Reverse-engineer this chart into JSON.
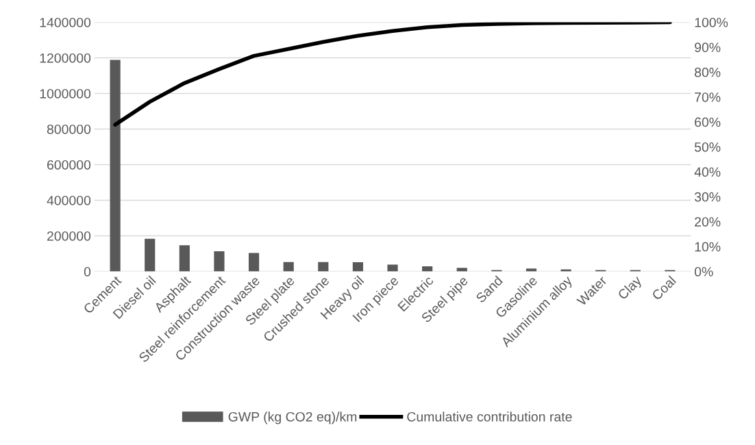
{
  "chart_data": {
    "type": "bar",
    "categories": [
      "Cement",
      "Diesel oil",
      "Asphalt",
      "Steel reinforcement",
      "Construction waste",
      "Steel plate",
      "Crushed stone",
      "Heavy oil",
      "Iron piece",
      "Electric",
      "Steel pipe",
      "Sand",
      "Gasoline",
      "Aluminium alloy",
      "Water",
      "Clay",
      "Coal"
    ],
    "series": [
      {
        "name": "GWP (kg CO2 eq)/km",
        "color": "#595959",
        "values": [
          1188000,
          184000,
          147000,
          113000,
          104000,
          53000,
          53000,
          52000,
          38000,
          29000,
          20000,
          8000,
          16000,
          12000,
          8000,
          8000,
          8000
        ]
      },
      {
        "name": "Cumulative contribution rate",
        "type": "line",
        "axis": "y2",
        "color": "#000000",
        "values": [
          58.9,
          68.1,
          75.6,
          81.2,
          86.5,
          89.3,
          92.1,
          94.6,
          96.5,
          98.0,
          98.9,
          99.3,
          99.6,
          99.7,
          99.8,
          99.9,
          100
        ]
      }
    ],
    "ylim": [
      0,
      1400000
    ],
    "yticks": [
      0,
      200000,
      400000,
      600000,
      800000,
      1000000,
      1200000,
      1400000
    ],
    "y2lim": [
      0,
      100
    ],
    "y2ticks": [
      {
        "value": 0,
        "label": "0%"
      },
      {
        "value": 10,
        "label": "10%"
      },
      {
        "value": 20,
        "label": "20%"
      },
      {
        "value": 30,
        "label": "30%"
      },
      {
        "value": 40,
        "label": "40%"
      },
      {
        "value": 50,
        "label": "50%"
      },
      {
        "value": 60,
        "label": "60%"
      },
      {
        "value": 70,
        "label": "70%"
      },
      {
        "value": 80,
        "label": "80%"
      },
      {
        "value": 90,
        "label": "90%"
      },
      {
        "value": 100,
        "label": "100%"
      }
    ],
    "grid": "y",
    "legend": "bottom",
    "marker": "none",
    "line_style": "solid"
  }
}
